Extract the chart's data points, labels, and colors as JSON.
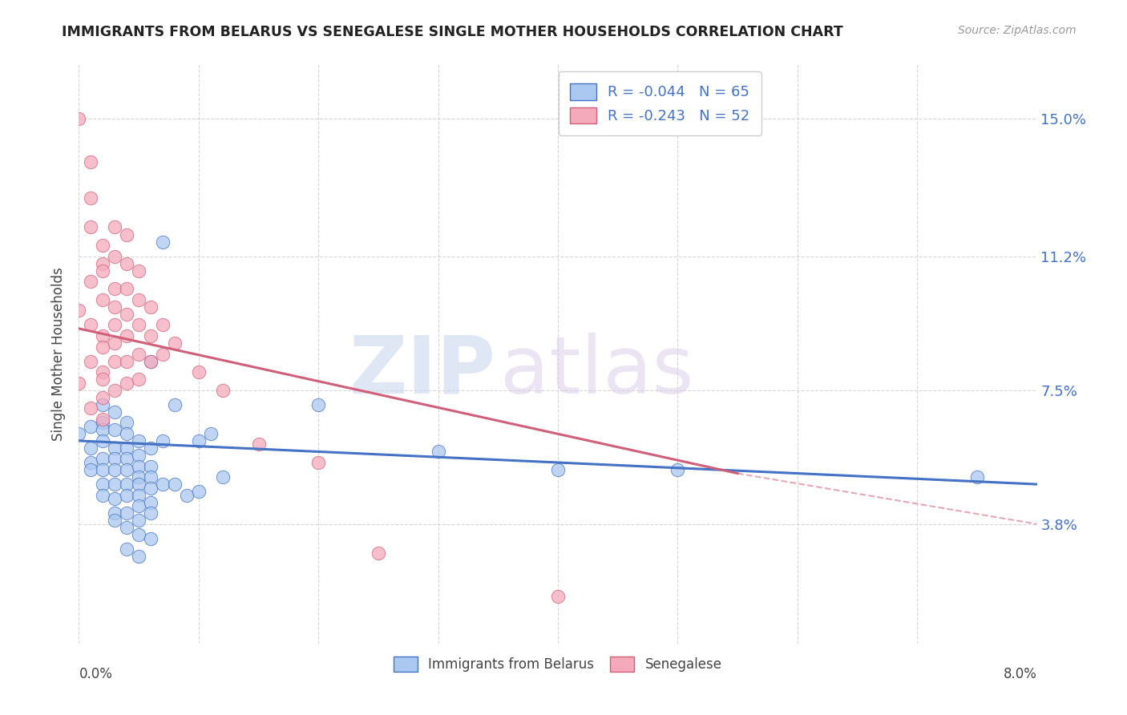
{
  "title": "IMMIGRANTS FROM BELARUS VS SENEGALESE SINGLE MOTHER HOUSEHOLDS CORRELATION CHART",
  "source": "Source: ZipAtlas.com",
  "ylabel": "Single Mother Households",
  "yticks": [
    "3.8%",
    "7.5%",
    "11.2%",
    "15.0%"
  ],
  "ytick_vals": [
    0.038,
    0.075,
    0.112,
    0.15
  ],
  "xmin": 0.0,
  "xmax": 0.08,
  "ymin": 0.005,
  "ymax": 0.165,
  "blue_R": "-0.044",
  "blue_N": "65",
  "pink_R": "-0.243",
  "pink_N": "52",
  "blue_color": "#aac8f0",
  "pink_color": "#f5aabb",
  "blue_edge": "#4472c4",
  "pink_edge": "#d0607a",
  "blue_line_color": "#4472c4",
  "pink_line_color": "#d0607a",
  "blue_scatter": [
    [
      0.0,
      0.063
    ],
    [
      0.001,
      0.065
    ],
    [
      0.001,
      0.059
    ],
    [
      0.001,
      0.055
    ],
    [
      0.001,
      0.053
    ],
    [
      0.002,
      0.071
    ],
    [
      0.002,
      0.066
    ],
    [
      0.002,
      0.064
    ],
    [
      0.002,
      0.061
    ],
    [
      0.002,
      0.056
    ],
    [
      0.002,
      0.053
    ],
    [
      0.002,
      0.049
    ],
    [
      0.002,
      0.046
    ],
    [
      0.003,
      0.069
    ],
    [
      0.003,
      0.064
    ],
    [
      0.003,
      0.059
    ],
    [
      0.003,
      0.056
    ],
    [
      0.003,
      0.053
    ],
    [
      0.003,
      0.049
    ],
    [
      0.003,
      0.045
    ],
    [
      0.003,
      0.041
    ],
    [
      0.003,
      0.039
    ],
    [
      0.004,
      0.066
    ],
    [
      0.004,
      0.063
    ],
    [
      0.004,
      0.059
    ],
    [
      0.004,
      0.056
    ],
    [
      0.004,
      0.053
    ],
    [
      0.004,
      0.049
    ],
    [
      0.004,
      0.046
    ],
    [
      0.004,
      0.041
    ],
    [
      0.004,
      0.037
    ],
    [
      0.004,
      0.031
    ],
    [
      0.005,
      0.061
    ],
    [
      0.005,
      0.057
    ],
    [
      0.005,
      0.054
    ],
    [
      0.005,
      0.051
    ],
    [
      0.005,
      0.049
    ],
    [
      0.005,
      0.046
    ],
    [
      0.005,
      0.043
    ],
    [
      0.005,
      0.039
    ],
    [
      0.005,
      0.035
    ],
    [
      0.005,
      0.029
    ],
    [
      0.006,
      0.083
    ],
    [
      0.006,
      0.059
    ],
    [
      0.006,
      0.054
    ],
    [
      0.006,
      0.051
    ],
    [
      0.006,
      0.048
    ],
    [
      0.006,
      0.044
    ],
    [
      0.006,
      0.041
    ],
    [
      0.006,
      0.034
    ],
    [
      0.007,
      0.116
    ],
    [
      0.007,
      0.061
    ],
    [
      0.007,
      0.049
    ],
    [
      0.008,
      0.071
    ],
    [
      0.008,
      0.049
    ],
    [
      0.009,
      0.046
    ],
    [
      0.01,
      0.061
    ],
    [
      0.01,
      0.047
    ],
    [
      0.011,
      0.063
    ],
    [
      0.012,
      0.051
    ],
    [
      0.02,
      0.071
    ],
    [
      0.03,
      0.058
    ],
    [
      0.04,
      0.053
    ],
    [
      0.05,
      0.053
    ],
    [
      0.075,
      0.051
    ]
  ],
  "pink_scatter": [
    [
      0.0,
      0.15
    ],
    [
      0.001,
      0.138
    ],
    [
      0.001,
      0.128
    ],
    [
      0.001,
      0.12
    ],
    [
      0.002,
      0.115
    ],
    [
      0.002,
      0.11
    ],
    [
      0.001,
      0.105
    ],
    [
      0.002,
      0.1
    ],
    [
      0.0,
      0.097
    ],
    [
      0.001,
      0.093
    ],
    [
      0.002,
      0.09
    ],
    [
      0.002,
      0.087
    ],
    [
      0.001,
      0.083
    ],
    [
      0.002,
      0.08
    ],
    [
      0.0,
      0.077
    ],
    [
      0.002,
      0.073
    ],
    [
      0.001,
      0.07
    ],
    [
      0.002,
      0.067
    ],
    [
      0.003,
      0.12
    ],
    [
      0.003,
      0.112
    ],
    [
      0.002,
      0.108
    ],
    [
      0.003,
      0.103
    ],
    [
      0.003,
      0.098
    ],
    [
      0.003,
      0.093
    ],
    [
      0.003,
      0.088
    ],
    [
      0.003,
      0.083
    ],
    [
      0.002,
      0.078
    ],
    [
      0.003,
      0.075
    ],
    [
      0.004,
      0.118
    ],
    [
      0.004,
      0.11
    ],
    [
      0.004,
      0.103
    ],
    [
      0.004,
      0.096
    ],
    [
      0.004,
      0.09
    ],
    [
      0.004,
      0.083
    ],
    [
      0.004,
      0.077
    ],
    [
      0.005,
      0.108
    ],
    [
      0.005,
      0.1
    ],
    [
      0.005,
      0.093
    ],
    [
      0.005,
      0.085
    ],
    [
      0.005,
      0.078
    ],
    [
      0.006,
      0.098
    ],
    [
      0.006,
      0.09
    ],
    [
      0.006,
      0.083
    ],
    [
      0.007,
      0.093
    ],
    [
      0.007,
      0.085
    ],
    [
      0.008,
      0.088
    ],
    [
      0.01,
      0.08
    ],
    [
      0.012,
      0.075
    ],
    [
      0.015,
      0.06
    ],
    [
      0.02,
      0.055
    ],
    [
      0.025,
      0.03
    ],
    [
      0.04,
      0.018
    ]
  ],
  "blue_trendline": [
    [
      0.0,
      0.061
    ],
    [
      0.08,
      0.049
    ]
  ],
  "pink_trendline_solid": [
    [
      0.0,
      0.092
    ],
    [
      0.055,
      0.052
    ]
  ],
  "pink_trendline_dash": [
    [
      0.055,
      0.052
    ],
    [
      0.08,
      0.038
    ]
  ]
}
